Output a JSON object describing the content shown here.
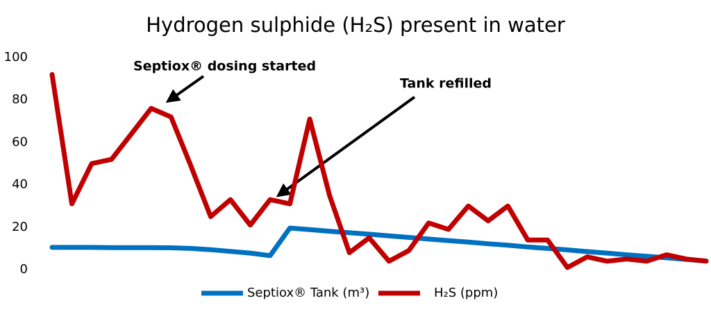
{
  "chart_data": {
    "type": "line",
    "title": "Hydrogen sulphide (H₂S) present in water",
    "annotations": [
      "Septiox® dosing started",
      "Tank refilled"
    ],
    "categories": [
      null,
      null,
      null,
      null,
      null,
      null,
      null,
      null,
      null,
      null,
      null,
      null,
      null,
      null,
      null,
      null,
      null,
      null,
      null,
      null,
      null,
      null,
      null,
      null,
      null,
      null,
      null,
      null,
      null,
      null,
      null,
      null,
      null,
      null
    ],
    "series": [
      {
        "name": "Septiox® Tank (m³)",
        "color": "#0070c0",
        "values": [
          10.5,
          10.5,
          10.5,
          10.4,
          10.4,
          10.4,
          10.3,
          10.0,
          9.4,
          8.6,
          7.8,
          6.6,
          19.6,
          18.9,
          18.1,
          17.4,
          16.7,
          15.9,
          15.2,
          14.4,
          13.7,
          13.0,
          12.2,
          11.5,
          10.7,
          10.0,
          9.3,
          8.5,
          7.8,
          7.0,
          6.3,
          5.6,
          4.8,
          4.1
        ]
      },
      {
        "name": "H₂S (ppm)",
        "color": "#c00000",
        "values": [
          92,
          31,
          50,
          52,
          64,
          76,
          72,
          49,
          25,
          33,
          21,
          33,
          31,
          71,
          35,
          8,
          15,
          4,
          9,
          22,
          19,
          30,
          23,
          30,
          14,
          14,
          1,
          6,
          4,
          5,
          4,
          7,
          5,
          4
        ]
      }
    ],
    "ylim": [
      0,
      100
    ],
    "yticks": [
      0,
      20,
      40,
      60,
      80,
      100
    ],
    "grid": false,
    "legend": "bottom"
  }
}
